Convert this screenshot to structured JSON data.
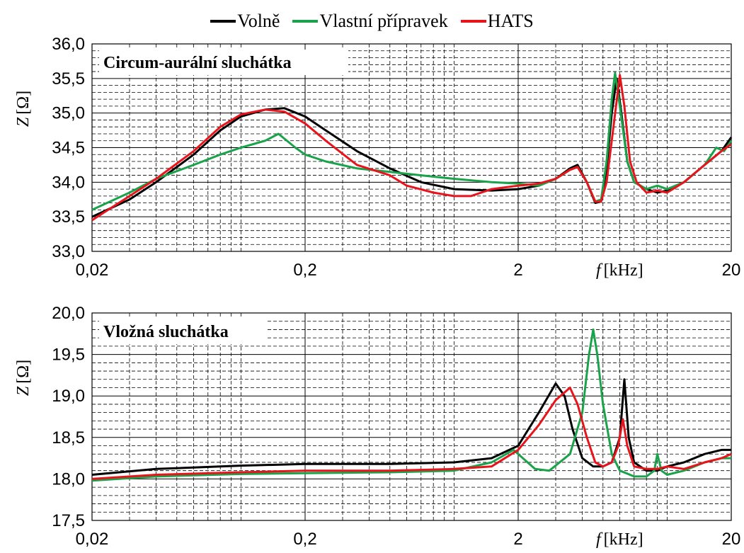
{
  "legend": [
    {
      "name": "Volně",
      "color": "#000000"
    },
    {
      "name": "Vlastní přípravek",
      "color": "#1aa34a"
    },
    {
      "name": "HATS",
      "color": "#e8141c"
    }
  ],
  "chart_data": [
    {
      "type": "line",
      "title": "Circum-aurální sluchátka",
      "ylabel": "Z [Ω]",
      "xlabel": "f [kHz]",
      "xscale": "log",
      "xlim": [
        0.02,
        20
      ],
      "ylim": [
        33.0,
        36.0
      ],
      "yticks": [
        "33,0",
        "33,5",
        "34,0",
        "34,5",
        "35,0",
        "35,5",
        "36,0"
      ],
      "xticks": [
        "0,02",
        "0,2",
        "2",
        "20"
      ],
      "grid": true,
      "series": [
        {
          "name": "Volně",
          "color": "#000000",
          "points": [
            [
              0.02,
              33.5
            ],
            [
              0.03,
              33.75
            ],
            [
              0.04,
              34.0
            ],
            [
              0.06,
              34.4
            ],
            [
              0.08,
              34.75
            ],
            [
              0.1,
              34.95
            ],
            [
              0.13,
              35.05
            ],
            [
              0.16,
              35.07
            ],
            [
              0.2,
              34.95
            ],
            [
              0.25,
              34.75
            ],
            [
              0.35,
              34.45
            ],
            [
              0.5,
              34.2
            ],
            [
              0.7,
              34.0
            ],
            [
              1.0,
              33.9
            ],
            [
              1.5,
              33.88
            ],
            [
              2.0,
              33.9
            ],
            [
              2.5,
              33.95
            ],
            [
              3.0,
              34.05
            ],
            [
              3.5,
              34.2
            ],
            [
              3.8,
              34.25
            ],
            [
              4.2,
              34.0
            ],
            [
              4.6,
              33.7
            ],
            [
              4.9,
              33.72
            ],
            [
              5.2,
              34.2
            ],
            [
              5.5,
              35.0
            ],
            [
              5.8,
              35.5
            ],
            [
              6.1,
              35.0
            ],
            [
              6.5,
              34.3
            ],
            [
              7.0,
              34.0
            ],
            [
              8.0,
              33.9
            ],
            [
              9.0,
              33.85
            ],
            [
              10.0,
              33.88
            ],
            [
              12.0,
              34.0
            ],
            [
              15.0,
              34.25
            ],
            [
              18.0,
              34.45
            ],
            [
              20.0,
              34.65
            ]
          ]
        },
        {
          "name": "Vlastní přípravek",
          "color": "#1aa34a",
          "points": [
            [
              0.02,
              33.6
            ],
            [
              0.03,
              33.85
            ],
            [
              0.04,
              34.05
            ],
            [
              0.06,
              34.25
            ],
            [
              0.08,
              34.4
            ],
            [
              0.1,
              34.5
            ],
            [
              0.13,
              34.6
            ],
            [
              0.15,
              34.7
            ],
            [
              0.18,
              34.5
            ],
            [
              0.2,
              34.4
            ],
            [
              0.25,
              34.3
            ],
            [
              0.35,
              34.2
            ],
            [
              0.5,
              34.15
            ],
            [
              0.7,
              34.1
            ],
            [
              1.0,
              34.05
            ],
            [
              1.5,
              34.0
            ],
            [
              2.0,
              33.98
            ],
            [
              2.5,
              33.95
            ],
            [
              3.0,
              34.05
            ],
            [
              3.5,
              34.18
            ],
            [
              3.8,
              34.22
            ],
            [
              4.2,
              34.0
            ],
            [
              4.6,
              33.72
            ],
            [
              4.9,
              33.75
            ],
            [
              5.2,
              34.3
            ],
            [
              5.5,
              35.2
            ],
            [
              5.7,
              35.58
            ],
            [
              6.0,
              35.1
            ],
            [
              6.5,
              34.3
            ],
            [
              7.0,
              34.0
            ],
            [
              8.0,
              33.9
            ],
            [
              9.0,
              33.95
            ],
            [
              10.0,
              33.9
            ],
            [
              12.0,
              34.0
            ],
            [
              15.0,
              34.25
            ],
            [
              17.0,
              34.5
            ],
            [
              18.5,
              34.45
            ],
            [
              20.0,
              34.6
            ]
          ]
        },
        {
          "name": "HATS",
          "color": "#e8141c",
          "points": [
            [
              0.02,
              33.45
            ],
            [
              0.03,
              33.8
            ],
            [
              0.04,
              34.05
            ],
            [
              0.06,
              34.45
            ],
            [
              0.08,
              34.8
            ],
            [
              0.1,
              34.98
            ],
            [
              0.13,
              35.05
            ],
            [
              0.16,
              35.02
            ],
            [
              0.2,
              34.85
            ],
            [
              0.25,
              34.6
            ],
            [
              0.35,
              34.25
            ],
            [
              0.5,
              34.1
            ],
            [
              0.6,
              33.95
            ],
            [
              0.8,
              33.85
            ],
            [
              1.0,
              33.8
            ],
            [
              1.2,
              33.8
            ],
            [
              1.5,
              33.9
            ],
            [
              2.0,
              33.95
            ],
            [
              2.5,
              33.98
            ],
            [
              3.0,
              34.05
            ],
            [
              3.5,
              34.18
            ],
            [
              3.8,
              34.22
            ],
            [
              4.2,
              34.0
            ],
            [
              4.6,
              33.72
            ],
            [
              4.9,
              33.72
            ],
            [
              5.2,
              34.0
            ],
            [
              5.6,
              34.8
            ],
            [
              6.0,
              35.55
            ],
            [
              6.3,
              35.1
            ],
            [
              6.7,
              34.3
            ],
            [
              7.2,
              34.0
            ],
            [
              8.0,
              33.85
            ],
            [
              9.0,
              33.88
            ],
            [
              10.0,
              33.85
            ],
            [
              12.0,
              34.0
            ],
            [
              15.0,
              34.25
            ],
            [
              18.0,
              34.45
            ],
            [
              20.0,
              34.55
            ]
          ]
        }
      ]
    },
    {
      "type": "line",
      "title": "Vložná sluchátka",
      "ylabel": "Z [Ω]",
      "xlabel": "f [kHz]",
      "xscale": "log",
      "xlim": [
        0.02,
        20
      ],
      "ylim": [
        17.5,
        20.0
      ],
      "yticks": [
        "17,5",
        "18,0",
        "18,5",
        "19,0",
        "19,5",
        "20,0"
      ],
      "xticks": [
        "0,02",
        "0,2",
        "2",
        "20"
      ],
      "grid": true,
      "series": [
        {
          "name": "Volně",
          "color": "#000000",
          "points": [
            [
              0.02,
              18.05
            ],
            [
              0.04,
              18.12
            ],
            [
              0.1,
              18.16
            ],
            [
              0.2,
              18.18
            ],
            [
              0.5,
              18.18
            ],
            [
              1.0,
              18.2
            ],
            [
              1.5,
              18.25
            ],
            [
              2.0,
              18.4
            ],
            [
              2.5,
              18.8
            ],
            [
              3.0,
              19.15
            ],
            [
              3.3,
              19.0
            ],
            [
              3.6,
              18.6
            ],
            [
              4.0,
              18.25
            ],
            [
              4.5,
              18.15
            ],
            [
              5.0,
              18.15
            ],
            [
              5.5,
              18.2
            ],
            [
              6.0,
              18.5
            ],
            [
              6.3,
              19.2
            ],
            [
              6.6,
              18.5
            ],
            [
              7.0,
              18.2
            ],
            [
              8.0,
              18.1
            ],
            [
              9.0,
              18.1
            ],
            [
              10.0,
              18.15
            ],
            [
              12.0,
              18.2
            ],
            [
              15.0,
              18.3
            ],
            [
              18.0,
              18.35
            ],
            [
              20.0,
              18.35
            ]
          ]
        },
        {
          "name": "Vlastní přípravek",
          "color": "#1aa34a",
          "points": [
            [
              0.02,
              17.98
            ],
            [
              0.04,
              18.03
            ],
            [
              0.1,
              18.06
            ],
            [
              0.2,
              18.07
            ],
            [
              0.5,
              18.08
            ],
            [
              1.0,
              18.1
            ],
            [
              1.5,
              18.2
            ],
            [
              1.9,
              18.35
            ],
            [
              2.0,
              18.3
            ],
            [
              2.4,
              18.12
            ],
            [
              2.8,
              18.1
            ],
            [
              3.5,
              18.3
            ],
            [
              4.0,
              18.8
            ],
            [
              4.3,
              19.5
            ],
            [
              4.5,
              19.8
            ],
            [
              4.7,
              19.5
            ],
            [
              5.0,
              18.9
            ],
            [
              5.5,
              18.3
            ],
            [
              6.0,
              18.1
            ],
            [
              7.0,
              18.03
            ],
            [
              8.0,
              18.03
            ],
            [
              8.7,
              18.1
            ],
            [
              9.0,
              18.3
            ],
            [
              9.4,
              18.1
            ],
            [
              10.0,
              18.05
            ],
            [
              12.0,
              18.1
            ],
            [
              15.0,
              18.2
            ],
            [
              18.0,
              18.25
            ],
            [
              20.0,
              18.25
            ]
          ]
        },
        {
          "name": "HATS",
          "color": "#e8141c",
          "points": [
            [
              0.02,
              18.0
            ],
            [
              0.04,
              18.05
            ],
            [
              0.1,
              18.08
            ],
            [
              0.2,
              18.1
            ],
            [
              0.5,
              18.1
            ],
            [
              1.0,
              18.12
            ],
            [
              1.5,
              18.15
            ],
            [
              2.0,
              18.35
            ],
            [
              2.5,
              18.65
            ],
            [
              3.0,
              18.95
            ],
            [
              3.5,
              19.1
            ],
            [
              3.8,
              18.9
            ],
            [
              4.2,
              18.5
            ],
            [
              4.6,
              18.2
            ],
            [
              5.0,
              18.15
            ],
            [
              5.5,
              18.2
            ],
            [
              5.9,
              18.4
            ],
            [
              6.2,
              18.72
            ],
            [
              6.5,
              18.4
            ],
            [
              7.0,
              18.15
            ],
            [
              8.0,
              18.12
            ],
            [
              9.0,
              18.12
            ],
            [
              10.0,
              18.15
            ],
            [
              12.0,
              18.12
            ],
            [
              15.0,
              18.2
            ],
            [
              18.0,
              18.25
            ],
            [
              20.0,
              18.3
            ]
          ]
        }
      ]
    }
  ]
}
